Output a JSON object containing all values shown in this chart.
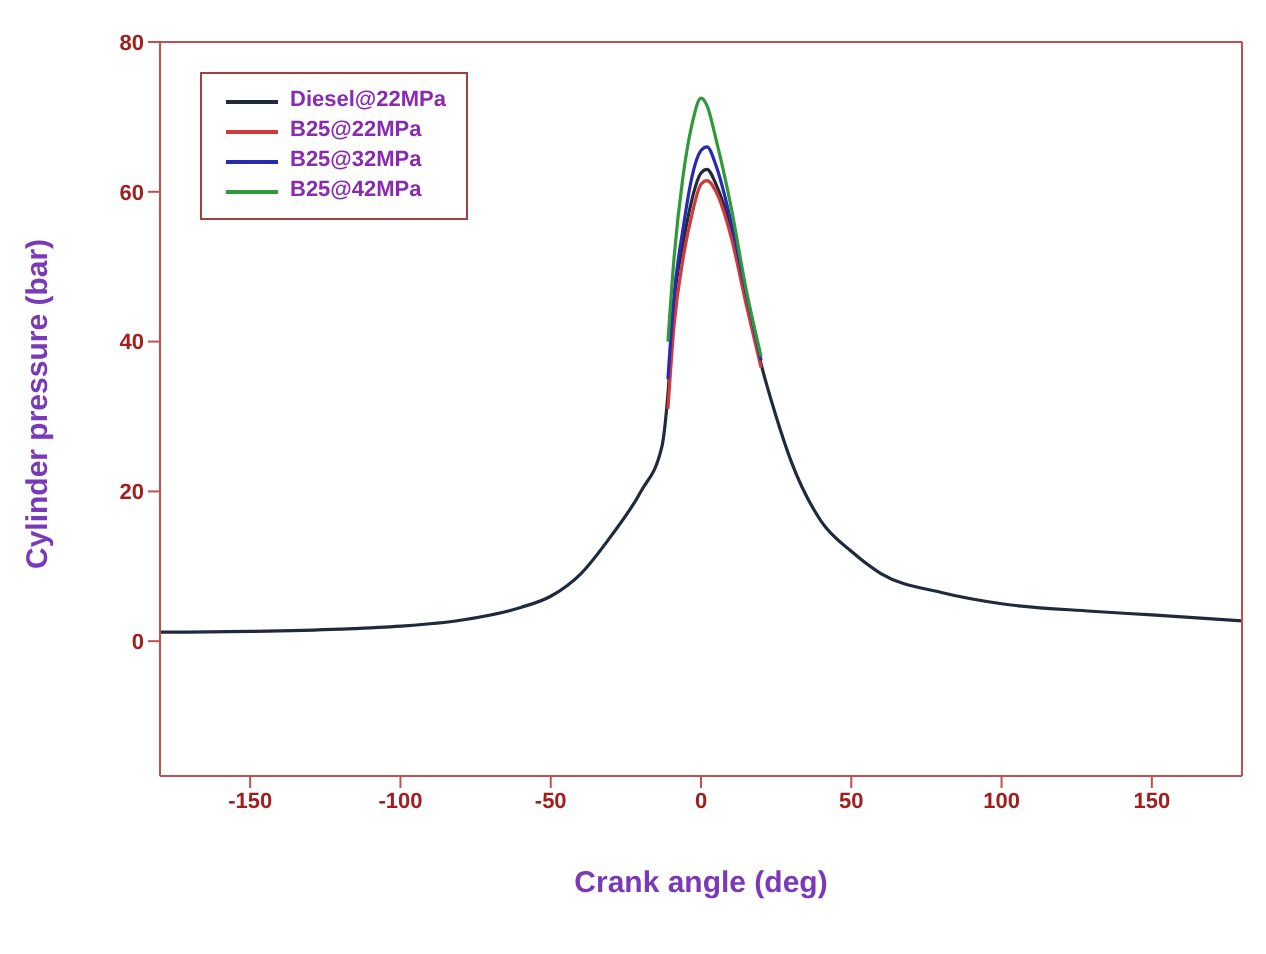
{
  "chart_data": {
    "type": "line",
    "xlabel": "Crank angle (deg)",
    "ylabel": "Cylinder pressure (bar)",
    "xlim": [
      -180,
      180
    ],
    "xticks": [
      -150,
      -100,
      -50,
      0,
      50,
      100,
      150
    ],
    "ylim": [
      -18,
      80
    ],
    "yticks": [
      0,
      20,
      40,
      60,
      80
    ],
    "grid": false,
    "legend": "top left",
    "marker": "none",
    "line_style": "solid",
    "x": [
      -180,
      -150,
      -120,
      -100,
      -80,
      -60,
      -50,
      -40,
      -30,
      -20,
      -13,
      -11,
      -9,
      -6,
      -3,
      0,
      2,
      5,
      10,
      15,
      20,
      25,
      30,
      40,
      50,
      60,
      80,
      100,
      130,
      150,
      180
    ],
    "series": [
      {
        "name": "Diesel@22MPa",
        "color": "#1f2a3a",
        "values": [
          1.2,
          1.3,
          1.6,
          2.0,
          2.8,
          4.5,
          6,
          9,
          14,
          20,
          26,
          33,
          45,
          53,
          59,
          62.5,
          63,
          61,
          55,
          46,
          37,
          30,
          24,
          16,
          12,
          9,
          6.5,
          5,
          4,
          3.5,
          2.7
        ]
      },
      {
        "name": "B25@22MPa",
        "color": "#d03a3a",
        "values": [
          null,
          null,
          null,
          null,
          null,
          null,
          null,
          null,
          null,
          null,
          null,
          31,
          42,
          51,
          57,
          61,
          61.5,
          60,
          54,
          45,
          36.5,
          null,
          null,
          null,
          null,
          null,
          null,
          null,
          null,
          null,
          null
        ]
      },
      {
        "name": "B25@32MPa",
        "color": "#2a2ab0",
        "values": [
          null,
          null,
          null,
          null,
          null,
          null,
          null,
          null,
          null,
          null,
          null,
          35,
          46,
          55,
          62,
          65.5,
          66,
          63.5,
          56,
          46.5,
          37.5,
          null,
          null,
          null,
          null,
          null,
          null,
          null,
          null,
          null,
          null
        ]
      },
      {
        "name": "B25@42MPa",
        "color": "#2e9a3a",
        "values": [
          null,
          null,
          null,
          null,
          null,
          null,
          null,
          null,
          null,
          null,
          null,
          40,
          51,
          62,
          69,
          72.5,
          71.5,
          67,
          58,
          47,
          38,
          null,
          null,
          null,
          null,
          null,
          null,
          null,
          null,
          null,
          null
        ]
      }
    ]
  }
}
